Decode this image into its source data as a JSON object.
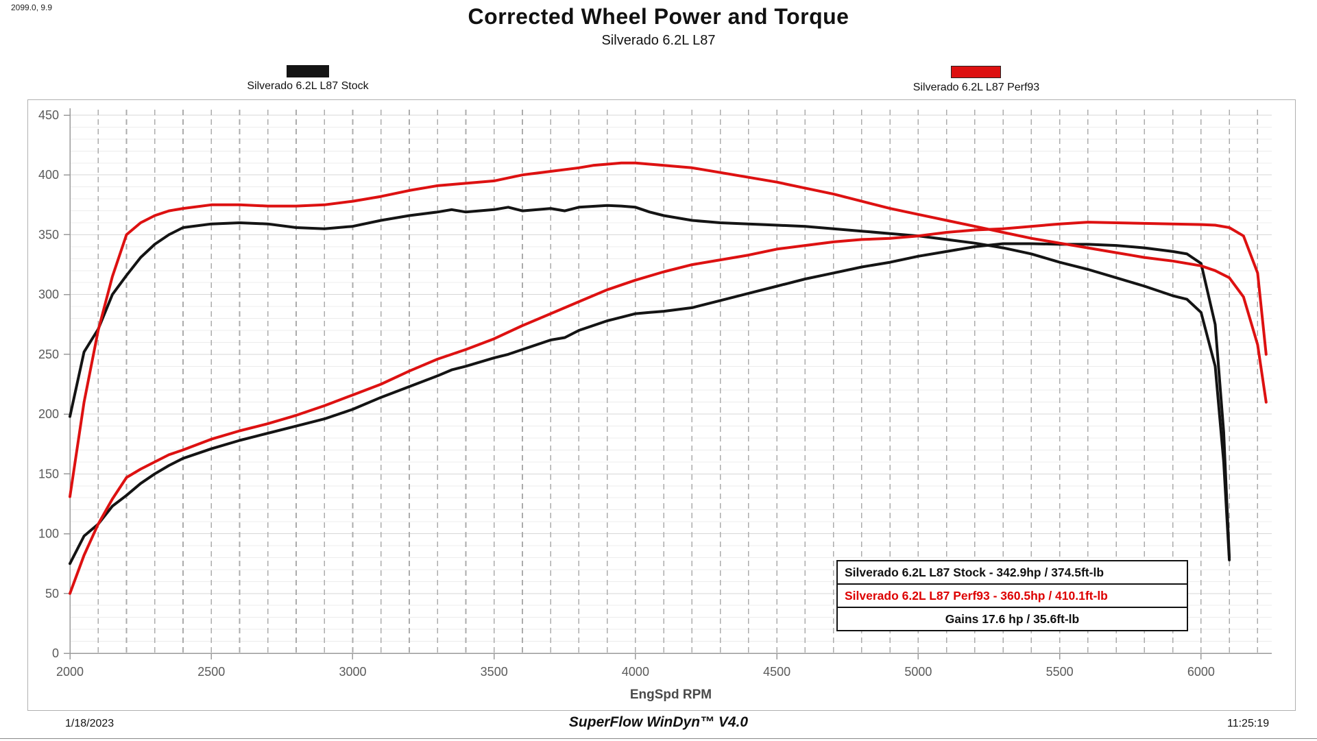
{
  "cursor_readout": "2099.0, 9.9",
  "header": {
    "title": "Corrected Wheel Power and Torque",
    "subtitle": "Silverado 6.2L L87"
  },
  "legends": [
    {
      "label": "Silverado 6.2L L87 Stock",
      "color": "#141414"
    },
    {
      "label": "Silverado 6.2L L87 Perf93",
      "color": "#dd1111"
    }
  ],
  "info_box": {
    "rows": [
      {
        "text": "Silverado 6.2L L87 Stock - 342.9hp / 374.5ft-lb",
        "color": "#111111",
        "align": "left"
      },
      {
        "text": "Silverado 6.2L L87 Perf93 - 360.5hp / 410.1ft-lb",
        "color": "#dd0000",
        "align": "left"
      },
      {
        "text": "Gains 17.6 hp / 35.6ft-lb",
        "color": "#111111",
        "align": "center"
      }
    ]
  },
  "footer": {
    "date": "1/18/2023",
    "software": "SuperFlow WinDyn™ V4.0",
    "time": "11:25:19"
  },
  "chart_data": {
    "type": "line",
    "title": "Corrected Wheel Power and Torque",
    "subtitle": "Silverado 6.2L L87",
    "xlabel": "EngSpd RPM",
    "ylabel": "",
    "x_range": [
      2000,
      6250
    ],
    "x_major_ticks": [
      2000,
      2500,
      3000,
      3500,
      4000,
      4500,
      5000,
      5500,
      6000
    ],
    "x_minor_step": 100,
    "y_range": [
      0,
      450
    ],
    "y_major_step": 50,
    "y_minor_step": 10,
    "grid": "on",
    "legend_position": "top",
    "peaks": {
      "stock_hp": 342.9,
      "stock_ftlb": 374.5,
      "perf93_hp": 360.5,
      "perf93_ftlb": 410.1,
      "gain_hp": 17.6,
      "gain_ftlb": 35.6
    },
    "series": [
      {
        "name": "Silverado 6.2L L87 Stock Torque (ft-lb)",
        "color": "#141414",
        "x": [
          2000,
          2050,
          2100,
          2150,
          2200,
          2250,
          2300,
          2350,
          2400,
          2500,
          2600,
          2700,
          2800,
          2900,
          3000,
          3100,
          3200,
          3300,
          3350,
          3400,
          3500,
          3550,
          3600,
          3700,
          3750,
          3800,
          3900,
          3950,
          4000,
          4050,
          4100,
          4200,
          4300,
          4400,
          4500,
          4600,
          4700,
          4800,
          4900,
          5000,
          5100,
          5200,
          5300,
          5400,
          5500,
          5600,
          5700,
          5800,
          5900,
          5950,
          6000,
          6050,
          6080,
          6100
        ],
        "values": [
          198,
          252,
          271,
          300,
          316,
          331,
          342,
          350,
          356,
          359,
          360,
          359,
          356,
          355,
          357,
          362,
          366,
          369,
          371,
          369,
          371,
          373,
          370,
          372,
          370,
          373,
          374.5,
          374,
          373,
          369,
          366,
          362,
          360,
          359,
          358,
          357,
          355,
          353,
          351,
          349,
          346,
          343,
          339,
          334,
          327,
          321,
          314,
          307,
          299,
          296,
          285,
          240,
          160,
          78
        ]
      },
      {
        "name": "Silverado 6.2L L87 Stock Power (hp)",
        "color": "#141414",
        "x": [
          2000,
          2050,
          2100,
          2150,
          2200,
          2250,
          2300,
          2350,
          2400,
          2500,
          2600,
          2700,
          2800,
          2900,
          3000,
          3100,
          3200,
          3300,
          3350,
          3400,
          3500,
          3550,
          3600,
          3700,
          3750,
          3800,
          3900,
          3950,
          4000,
          4050,
          4100,
          4200,
          4300,
          4400,
          4500,
          4600,
          4700,
          4800,
          4900,
          5000,
          5100,
          5200,
          5300,
          5400,
          5500,
          5600,
          5700,
          5800,
          5900,
          5950,
          6000,
          6050,
          6080,
          6100
        ],
        "values": [
          75,
          98,
          108,
          123,
          132,
          142,
          150,
          157,
          163,
          171,
          178,
          184,
          190,
          196,
          204,
          214,
          223,
          232,
          237,
          240,
          247,
          250,
          254,
          262,
          264,
          270,
          278,
          281,
          284,
          285,
          286,
          289,
          295,
          301,
          307,
          313,
          318,
          323,
          327,
          332,
          336,
          340,
          342.5,
          342.5,
          342,
          342,
          341,
          339,
          336,
          334,
          326,
          275,
          185,
          80
        ]
      },
      {
        "name": "Silverado 6.2L L87 Perf93 Torque (ft-lb)",
        "color": "#dd1111",
        "x": [
          2000,
          2050,
          2100,
          2150,
          2200,
          2250,
          2300,
          2350,
          2400,
          2500,
          2600,
          2700,
          2800,
          2900,
          3000,
          3100,
          3200,
          3300,
          3400,
          3500,
          3600,
          3700,
          3800,
          3850,
          3900,
          3950,
          4000,
          4100,
          4200,
          4300,
          4400,
          4500,
          4600,
          4700,
          4800,
          4900,
          5000,
          5100,
          5200,
          5300,
          5400,
          5500,
          5600,
          5700,
          5800,
          5900,
          6000,
          6050,
          6100,
          6150,
          6200,
          6230
        ],
        "values": [
          131,
          210,
          270,
          315,
          350,
          360,
          366,
          370,
          372,
          375,
          375,
          374,
          374,
          375,
          378,
          382,
          387,
          391,
          393,
          395,
          400,
          403,
          406,
          408,
          409,
          410,
          410,
          408,
          406,
          402,
          398,
          394,
          389,
          384,
          378,
          372,
          367,
          362,
          357,
          352,
          347,
          343,
          339,
          335,
          331,
          328,
          324,
          320,
          314,
          298,
          258,
          210
        ]
      },
      {
        "name": "Silverado 6.2L L87 Perf93 Power (hp)",
        "color": "#dd1111",
        "x": [
          2000,
          2050,
          2100,
          2150,
          2200,
          2250,
          2300,
          2350,
          2400,
          2500,
          2600,
          2700,
          2800,
          2900,
          3000,
          3100,
          3200,
          3300,
          3400,
          3500,
          3600,
          3700,
          3800,
          3850,
          3900,
          3950,
          4000,
          4100,
          4200,
          4300,
          4400,
          4500,
          4600,
          4700,
          4800,
          4900,
          5000,
          5100,
          5200,
          5300,
          5400,
          5500,
          5600,
          5700,
          5800,
          5900,
          6000,
          6050,
          6100,
          6150,
          6200,
          6230
        ],
        "values": [
          50,
          82,
          108,
          129,
          147,
          154,
          160,
          166,
          170,
          179,
          186,
          192,
          199,
          207,
          216,
          225,
          236,
          246,
          254,
          263,
          274,
          284,
          294,
          299,
          304,
          308,
          312,
          319,
          325,
          329,
          333,
          338,
          341,
          344,
          346,
          347,
          349,
          352,
          354,
          355,
          357,
          359,
          360.5,
          360,
          359.5,
          359,
          358.5,
          358,
          356,
          349,
          318,
          250
        ]
      }
    ]
  }
}
